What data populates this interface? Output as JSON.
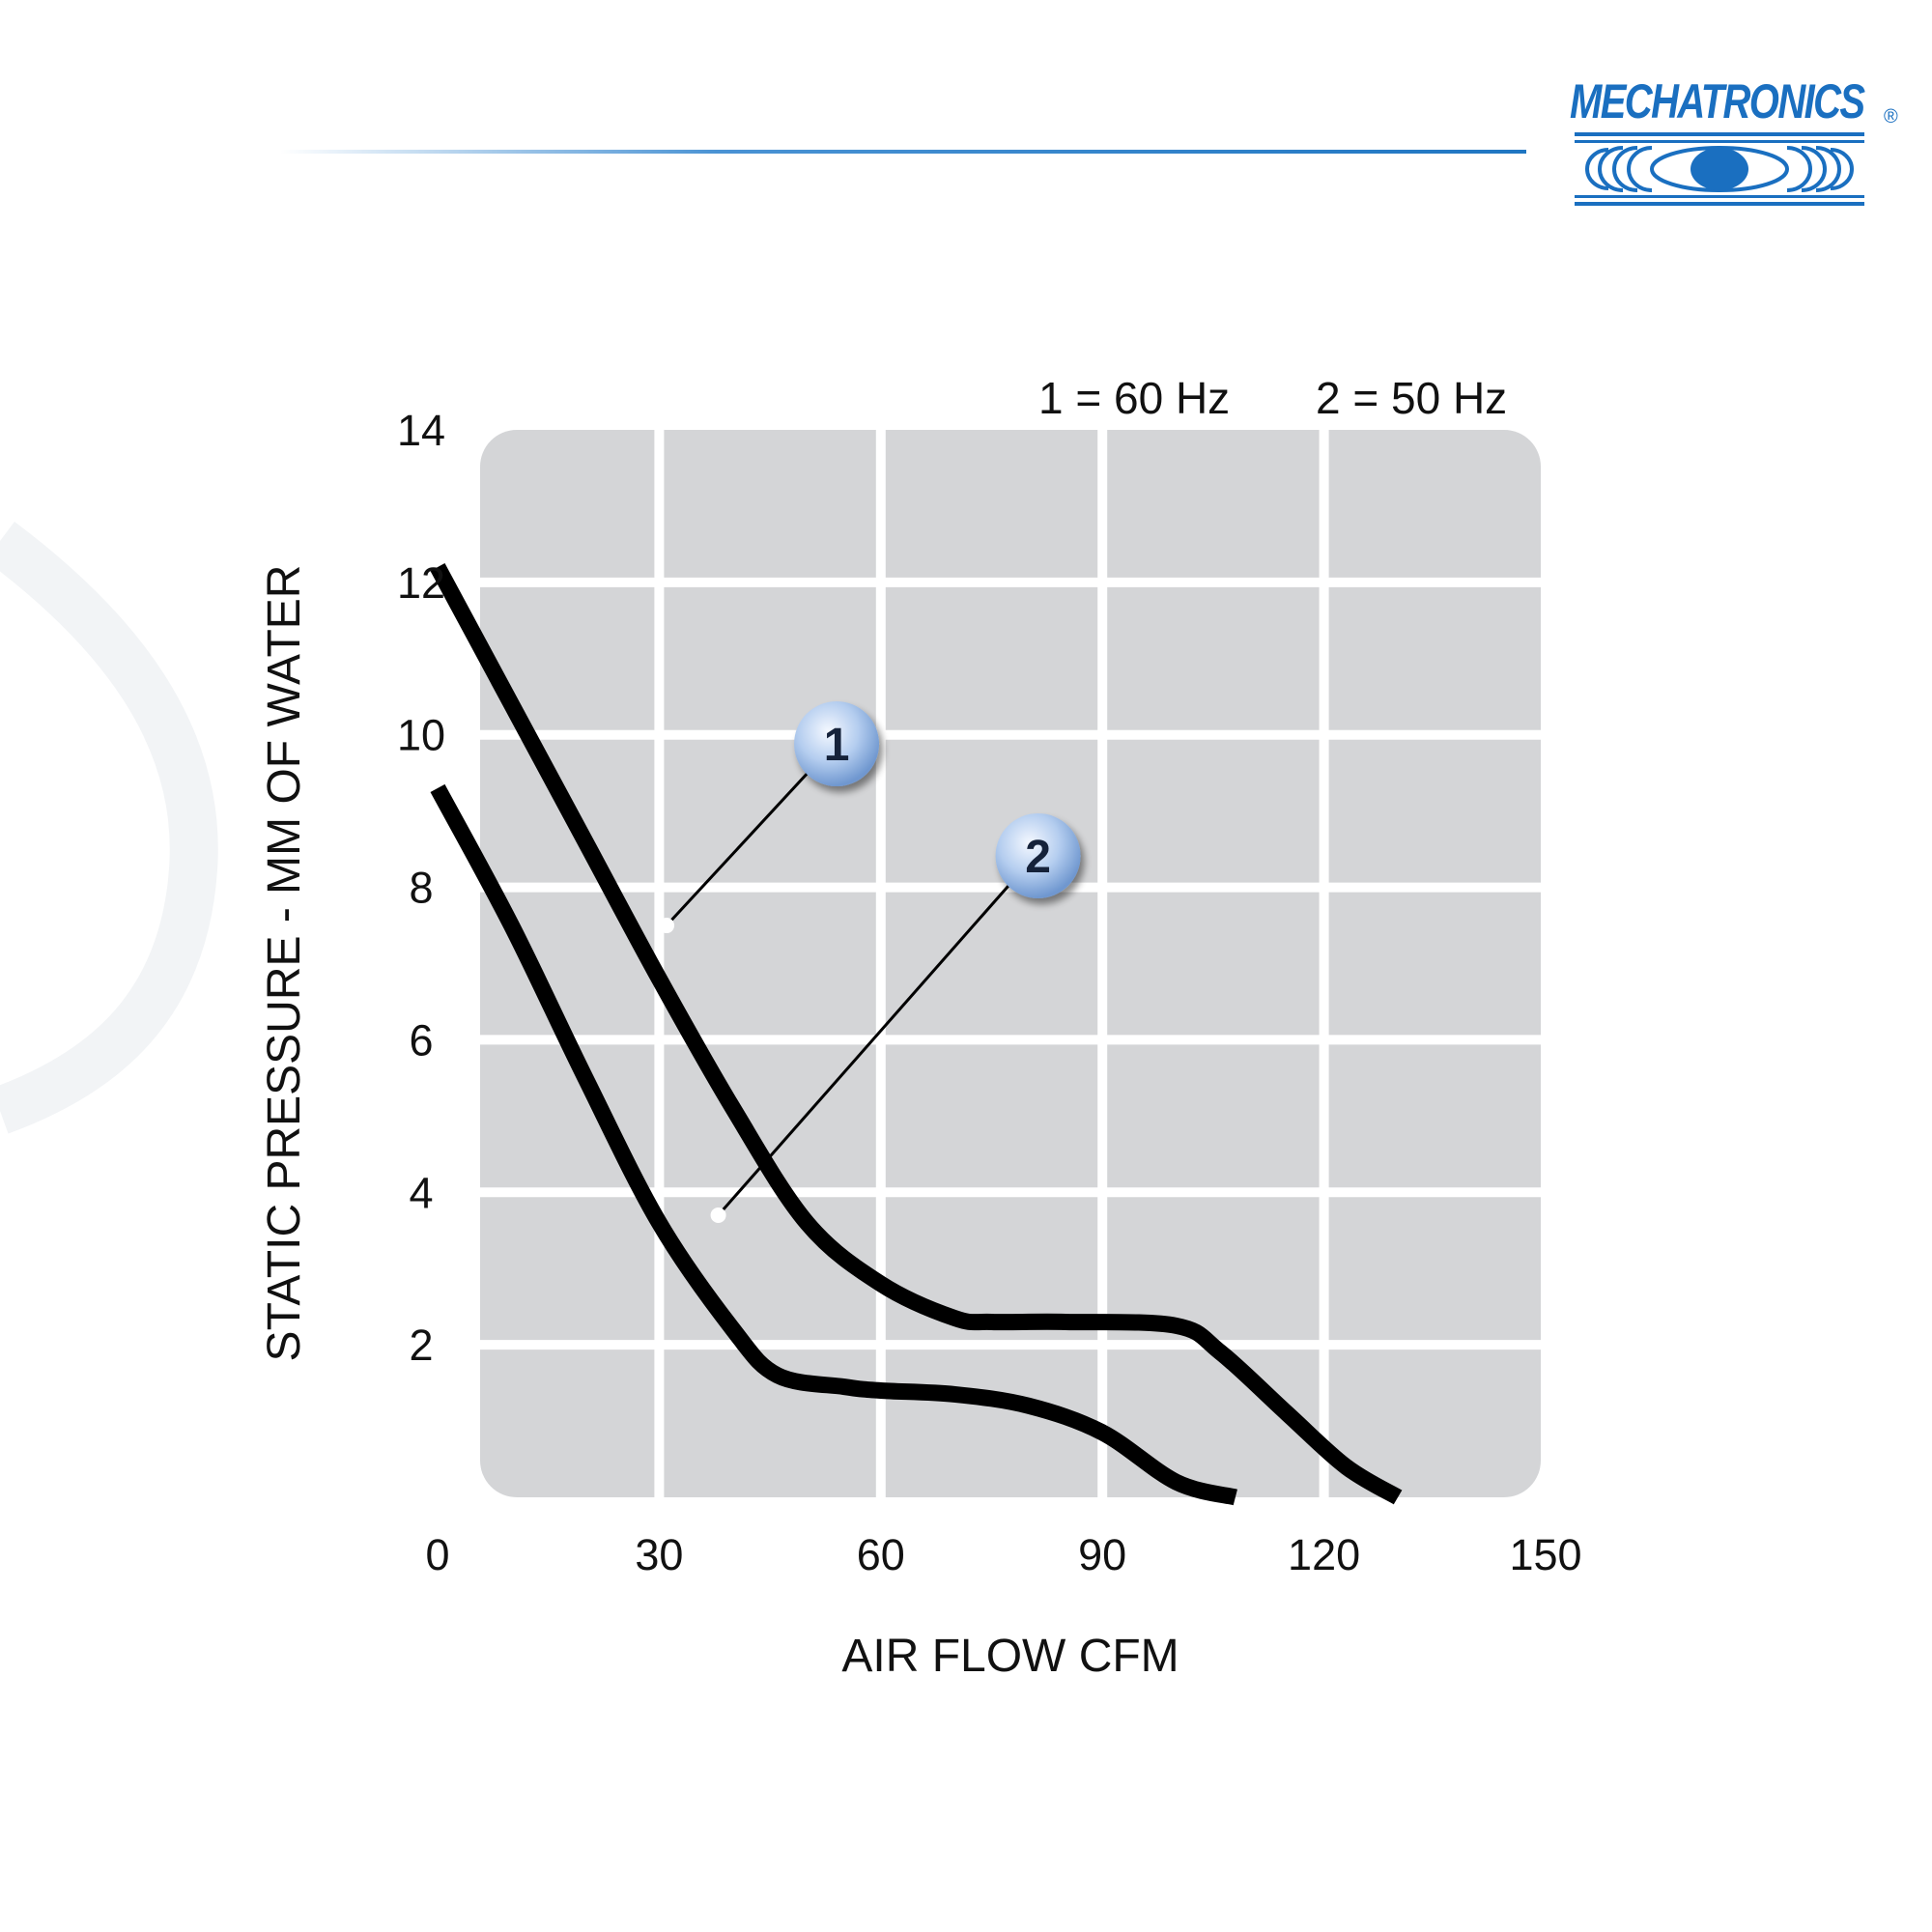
{
  "brand": {
    "name": "MECHATRONICS",
    "registered": "®",
    "color": "#1a6fc0"
  },
  "chart_data": {
    "type": "line",
    "xlabel": "AIR FLOW CFM",
    "ylabel": "STATIC PRESSURE - MM OF WATER",
    "xlim": [
      0,
      150
    ],
    "ylim": [
      0,
      14
    ],
    "xticks": [
      "0",
      "30",
      "60",
      "90",
      "120",
      "150"
    ],
    "yticks": [
      "2",
      "4",
      "6",
      "8",
      "10",
      "12",
      "14"
    ],
    "grid": true,
    "legend_position": "top-right",
    "legend": [
      "1 = 60 Hz",
      "2 = 50 Hz"
    ],
    "series": [
      {
        "name": "1",
        "color": "#000000",
        "x": [
          0,
          10,
          20,
          30,
          40,
          50,
          60,
          70,
          75,
          85,
          100,
          106,
          115,
          123,
          130
        ],
        "y": [
          12.2,
          10.4,
          8.6,
          6.8,
          5.1,
          3.6,
          2.8,
          2.35,
          2.3,
          2.3,
          2.25,
          1.9,
          1.1,
          0.4,
          0
        ]
      },
      {
        "name": "2",
        "color": "#000000",
        "x": [
          0,
          10,
          20,
          30,
          40,
          46,
          55,
          60,
          70,
          80,
          90,
          100,
          108
        ],
        "y": [
          9.3,
          7.5,
          5.5,
          3.6,
          2.2,
          1.6,
          1.45,
          1.4,
          1.35,
          1.2,
          0.85,
          0.2,
          0
        ]
      }
    ],
    "annotations": [
      {
        "label": "1",
        "series": "1",
        "x": 31,
        "y": 7.5
      },
      {
        "label": "2",
        "series": "2",
        "x": 38,
        "y": 3.7
      }
    ]
  }
}
